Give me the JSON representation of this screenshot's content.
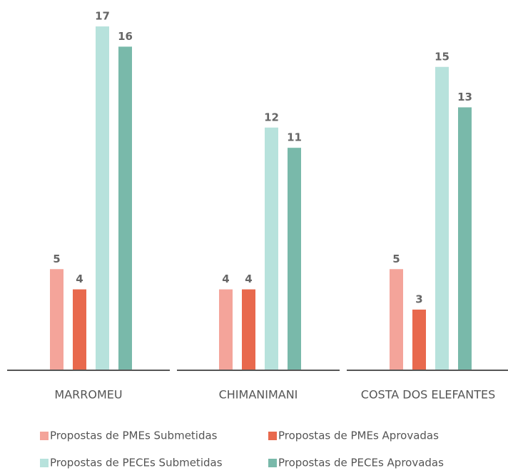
{
  "chart_data": {
    "type": "bar",
    "categories": [
      "MARROMEU",
      "CHIMANIMANI",
      "COSTA DOS ELEFANTES"
    ],
    "series": [
      {
        "name": "Propostas de PMEs Submetidas",
        "color": "#f4a49a",
        "values": [
          5,
          4,
          5
        ]
      },
      {
        "name": "Propostas de PMEs Aprovadas",
        "color": "#e8694d",
        "values": [
          4,
          4,
          3
        ]
      },
      {
        "name": "Propostas de PECEs Submetidas",
        "color": "#b7e2dc",
        "values": [
          17,
          12,
          15
        ]
      },
      {
        "name": "Propostas de PECEs Aprovadas",
        "color": "#79b9aa",
        "values": [
          16,
          11,
          13
        ]
      }
    ]
  }
}
